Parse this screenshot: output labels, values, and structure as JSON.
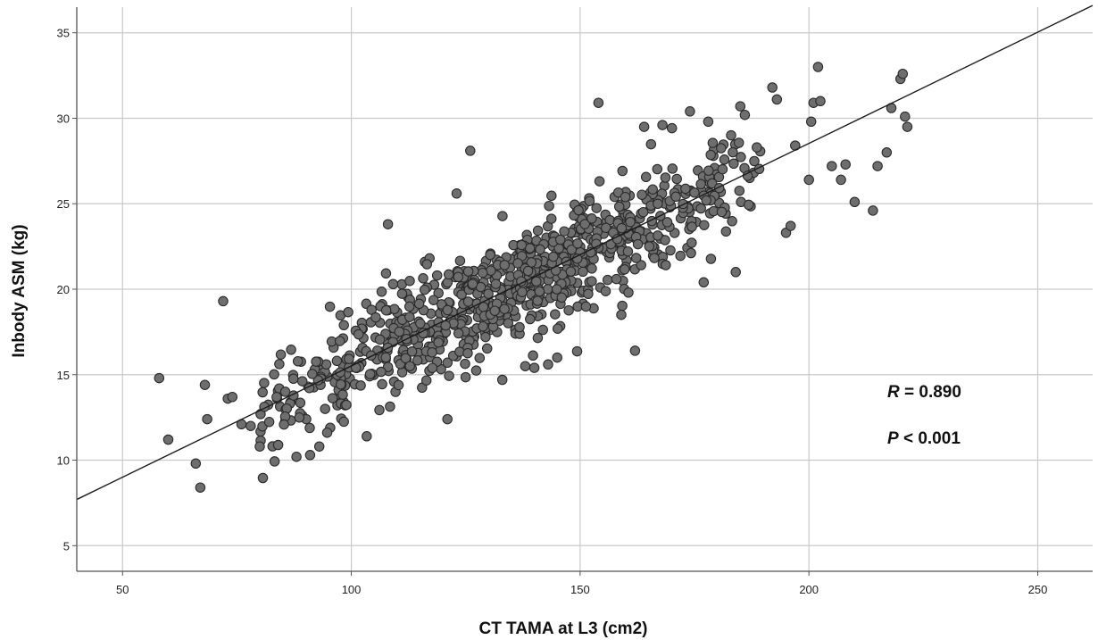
{
  "chart_data": {
    "type": "scatter",
    "title": "",
    "xlabel": "CT TAMA at L3 (cm2)",
    "ylabel": "Inbody ASM (kg)",
    "xlim": [
      40,
      262
    ],
    "ylim": [
      3.5,
      36.5
    ],
    "xticks": [
      50,
      100,
      150,
      200,
      250
    ],
    "yticks": [
      5,
      10,
      15,
      20,
      25,
      30,
      35
    ],
    "grid": true,
    "legend": "none",
    "marker_color": "#6e6e6e",
    "marker_edge": "#2a2a2a",
    "line_color": "#1a1a1a",
    "regression_line": {
      "x": [
        40,
        262
      ],
      "y": [
        7.7,
        36.6
      ]
    },
    "annotations": {
      "r": {
        "symbol": "R",
        "text": " = 0.890"
      },
      "p": {
        "symbol": "P",
        "text": " < 0.001"
      }
    },
    "outliers": [
      {
        "x": 58,
        "y": 14.8
      },
      {
        "x": 60,
        "y": 11.2
      },
      {
        "x": 66,
        "y": 9.8
      },
      {
        "x": 67,
        "y": 8.4
      },
      {
        "x": 68,
        "y": 14.4
      },
      {
        "x": 68.5,
        "y": 12.4
      },
      {
        "x": 72,
        "y": 19.3
      },
      {
        "x": 73,
        "y": 13.6
      },
      {
        "x": 74,
        "y": 13.7
      },
      {
        "x": 76,
        "y": 12.1
      },
      {
        "x": 78,
        "y": 12.0
      },
      {
        "x": 80,
        "y": 10.8
      },
      {
        "x": 88,
        "y": 10.2
      },
      {
        "x": 91,
        "y": 10.3
      },
      {
        "x": 93,
        "y": 10.8
      },
      {
        "x": 108,
        "y": 23.8
      },
      {
        "x": 121,
        "y": 12.4
      },
      {
        "x": 123,
        "y": 25.6
      },
      {
        "x": 126,
        "y": 28.1
      },
      {
        "x": 133,
        "y": 14.7
      },
      {
        "x": 138,
        "y": 15.5
      },
      {
        "x": 140,
        "y": 15.4
      },
      {
        "x": 143,
        "y": 15.6
      },
      {
        "x": 145,
        "y": 16.0
      },
      {
        "x": 154,
        "y": 30.9
      },
      {
        "x": 159,
        "y": 18.5
      },
      {
        "x": 162,
        "y": 16.4
      },
      {
        "x": 164,
        "y": 29.5
      },
      {
        "x": 168,
        "y": 29.6
      },
      {
        "x": 174,
        "y": 30.4
      },
      {
        "x": 177,
        "y": 20.4
      },
      {
        "x": 178,
        "y": 29.8
      },
      {
        "x": 183,
        "y": 29.0
      },
      {
        "x": 184,
        "y": 21.0
      },
      {
        "x": 185,
        "y": 30.7
      },
      {
        "x": 186,
        "y": 30.2
      },
      {
        "x": 192,
        "y": 31.8
      },
      {
        "x": 193,
        "y": 31.1
      },
      {
        "x": 195,
        "y": 23.3
      },
      {
        "x": 196,
        "y": 23.7
      },
      {
        "x": 197,
        "y": 28.4
      },
      {
        "x": 200,
        "y": 26.4
      },
      {
        "x": 200.5,
        "y": 29.8
      },
      {
        "x": 201,
        "y": 30.9
      },
      {
        "x": 202,
        "y": 33.0
      },
      {
        "x": 202.5,
        "y": 31.0
      },
      {
        "x": 205,
        "y": 27.2
      },
      {
        "x": 207,
        "y": 26.4
      },
      {
        "x": 208,
        "y": 27.3
      },
      {
        "x": 210,
        "y": 25.1
      },
      {
        "x": 214,
        "y": 24.6
      },
      {
        "x": 215,
        "y": 27.2
      },
      {
        "x": 217,
        "y": 28.0
      },
      {
        "x": 218,
        "y": 30.6
      },
      {
        "x": 220,
        "y": 32.3
      },
      {
        "x": 220.5,
        "y": 32.6
      },
      {
        "x": 221,
        "y": 30.1
      },
      {
        "x": 221.5,
        "y": 29.5
      }
    ],
    "dense_cloud": {
      "n_points": 880,
      "x_range": [
        80,
        190
      ],
      "center_x": 135,
      "spread_x": 30,
      "y_residual_sd": 1.6
    }
  }
}
